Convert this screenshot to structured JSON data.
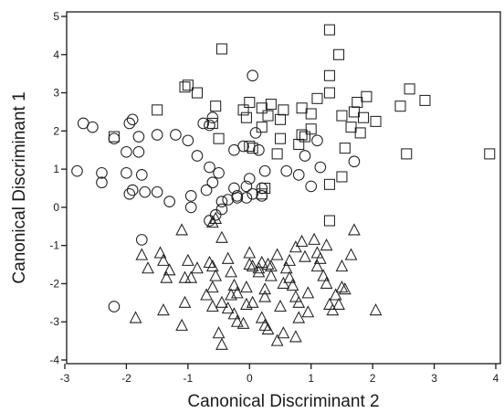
{
  "chart_data": {
    "type": "scatter",
    "title": "",
    "xlabel": "Canonical Discriminant 2",
    "ylabel": "Canonical Discriminant 1",
    "xlim": [
      -3,
      4
    ],
    "ylim": [
      -4,
      5
    ],
    "x_ticks": [
      "-3",
      "-2",
      "-1",
      "0",
      "1",
      "2",
      "3",
      "4"
    ],
    "y_ticks": [
      "5",
      "4",
      "3",
      "2",
      "1",
      "0",
      "-1",
      "-2",
      "-3",
      "-4"
    ],
    "x_tick_values": [
      -3,
      -2,
      -1,
      0,
      1,
      2,
      3,
      4
    ],
    "y_tick_values": [
      5,
      4,
      3,
      2,
      1,
      0,
      -1,
      -2,
      -3,
      -4
    ],
    "grid": false,
    "legend": "none",
    "stroke_color": "#222222",
    "series": [
      {
        "marker": "square",
        "points": [
          [
            1.3,
            4.65
          ],
          [
            1.45,
            4.0
          ],
          [
            -0.45,
            4.15
          ],
          [
            -1.0,
            3.2
          ],
          [
            -0.85,
            3.0
          ],
          [
            -1.05,
            3.15
          ],
          [
            0.0,
            2.75
          ],
          [
            0.35,
            2.7
          ],
          [
            0.2,
            2.6
          ],
          [
            -0.1,
            2.55
          ],
          [
            -0.05,
            2.35
          ],
          [
            0.3,
            2.4
          ],
          [
            0.5,
            2.3
          ],
          [
            0.2,
            2.1
          ],
          [
            0.55,
            2.55
          ],
          [
            -0.55,
            2.65
          ],
          [
            -1.5,
            2.55
          ],
          [
            -2.2,
            1.85
          ],
          [
            -0.6,
            2.2
          ],
          [
            -0.5,
            1.8
          ],
          [
            0.05,
            1.55
          ],
          [
            0.0,
            1.6
          ],
          [
            0.45,
            1.4
          ],
          [
            0.5,
            1.8
          ],
          [
            0.8,
            1.65
          ],
          [
            0.85,
            2.6
          ],
          [
            0.9,
            1.85
          ],
          [
            1.0,
            2.05
          ],
          [
            1.1,
            2.85
          ],
          [
            1.0,
            2.45
          ],
          [
            1.3,
            3.45
          ],
          [
            1.3,
            3.0
          ],
          [
            1.5,
            2.4
          ],
          [
            1.75,
            2.75
          ],
          [
            1.7,
            2.5
          ],
          [
            1.65,
            2.1
          ],
          [
            1.9,
            2.9
          ],
          [
            1.85,
            2.35
          ],
          [
            2.05,
            2.25
          ],
          [
            1.55,
            1.55
          ],
          [
            1.5,
            0.8
          ],
          [
            1.3,
            0.6
          ],
          [
            1.8,
            1.95
          ],
          [
            0.85,
            1.9
          ],
          [
            0.2,
            0.35
          ],
          [
            0.25,
            0.5
          ],
          [
            2.45,
            2.65
          ],
          [
            2.6,
            3.1
          ],
          [
            2.85,
            2.8
          ],
          [
            2.55,
            1.4
          ],
          [
            3.9,
            1.4
          ],
          [
            1.3,
            -0.35
          ]
        ]
      },
      {
        "marker": "circle",
        "points": [
          [
            0.05,
            3.45
          ],
          [
            -2.8,
            0.95
          ],
          [
            -2.7,
            2.2
          ],
          [
            -2.55,
            2.1
          ],
          [
            -2.4,
            0.9
          ],
          [
            -2.4,
            0.65
          ],
          [
            -2.2,
            1.8
          ],
          [
            -2.0,
            1.45
          ],
          [
            -2.0,
            0.9
          ],
          [
            -1.95,
            2.2
          ],
          [
            -1.9,
            2.3
          ],
          [
            -1.8,
            1.85
          ],
          [
            -1.8,
            1.45
          ],
          [
            -1.75,
            0.85
          ],
          [
            -1.7,
            0.4
          ],
          [
            -1.95,
            0.35
          ],
          [
            -1.9,
            0.45
          ],
          [
            -1.5,
            1.9
          ],
          [
            -1.5,
            0.4
          ],
          [
            -1.2,
            1.9
          ],
          [
            -1.0,
            1.75
          ],
          [
            -0.95,
            0.3
          ],
          [
            -0.85,
            1.35
          ],
          [
            -0.75,
            2.2
          ],
          [
            -0.65,
            2.15
          ],
          [
            -0.6,
            2.35
          ],
          [
            -0.65,
            1.05
          ],
          [
            -0.6,
            0.65
          ],
          [
            -0.7,
            0.45
          ],
          [
            -0.5,
            0.9
          ],
          [
            -0.45,
            0.15
          ],
          [
            -0.35,
            0.2
          ],
          [
            -0.25,
            0.5
          ],
          [
            -0.2,
            0.3
          ],
          [
            -0.25,
            1.5
          ],
          [
            -0.2,
            0.25
          ],
          [
            -0.1,
            1.6
          ],
          [
            -0.05,
            0.55
          ],
          [
            -0.05,
            0.25
          ],
          [
            0.0,
            0.75
          ],
          [
            0.05,
            0.35
          ],
          [
            0.1,
            1.95
          ],
          [
            0.15,
            1.5
          ],
          [
            0.2,
            0.5
          ],
          [
            0.2,
            0.3
          ],
          [
            0.25,
            0.95
          ],
          [
            -0.45,
            -0.05
          ],
          [
            -0.55,
            -0.2
          ],
          [
            -0.65,
            -0.35
          ],
          [
            -0.95,
            0.0
          ],
          [
            -1.75,
            -0.85
          ],
          [
            -2.2,
            -2.6
          ],
          [
            0.9,
            1.35
          ],
          [
            1.0,
            0.55
          ],
          [
            1.1,
            1.75
          ],
          [
            1.15,
            1.05
          ],
          [
            0.8,
            0.85
          ],
          [
            0.6,
            0.95
          ],
          [
            1.7,
            1.2
          ],
          [
            -1.3,
            0.15
          ]
        ]
      },
      {
        "marker": "triangle",
        "points": [
          [
            -0.55,
            -0.3
          ],
          [
            -0.6,
            -0.4
          ],
          [
            -1.1,
            -0.6
          ],
          [
            -0.45,
            -0.8
          ],
          [
            -1.75,
            -1.25
          ],
          [
            -1.45,
            -1.2
          ],
          [
            -1.4,
            -1.4
          ],
          [
            -1.35,
            -1.85
          ],
          [
            -1.3,
            -1.65
          ],
          [
            -1.0,
            -1.4
          ],
          [
            -1.05,
            -1.85
          ],
          [
            -0.65,
            -1.45
          ],
          [
            -0.55,
            -1.8
          ],
          [
            -0.3,
            -1.7
          ],
          [
            -0.25,
            -2.05
          ],
          [
            -0.3,
            -2.3
          ],
          [
            -0.2,
            -2.25
          ],
          [
            -0.35,
            -2.65
          ],
          [
            -0.25,
            -2.8
          ],
          [
            -0.05,
            -2.1
          ],
          [
            -0.05,
            -2.55
          ],
          [
            0.0,
            -1.2
          ],
          [
            0.0,
            -1.5
          ],
          [
            0.05,
            -1.55
          ],
          [
            0.15,
            -1.7
          ],
          [
            0.2,
            -1.45
          ],
          [
            0.25,
            -2.15
          ],
          [
            0.25,
            -2.35
          ],
          [
            0.3,
            -1.5
          ],
          [
            0.35,
            -1.8
          ],
          [
            0.45,
            -1.25
          ],
          [
            0.55,
            -2.0
          ],
          [
            0.5,
            -2.6
          ],
          [
            0.65,
            -1.4
          ],
          [
            0.65,
            -1.85
          ],
          [
            0.7,
            -2.05
          ],
          [
            0.75,
            -2.35
          ],
          [
            0.75,
            -1.05
          ],
          [
            0.8,
            -2.5
          ],
          [
            0.8,
            -2.9
          ],
          [
            0.85,
            -0.9
          ],
          [
            0.9,
            -1.3
          ],
          [
            0.95,
            -2.25
          ],
          [
            0.95,
            -2.75
          ],
          [
            1.05,
            -0.85
          ],
          [
            1.1,
            -1.2
          ],
          [
            1.1,
            -1.55
          ],
          [
            1.15,
            -1.35
          ],
          [
            1.2,
            -1.8
          ],
          [
            1.25,
            -1.0
          ],
          [
            0.55,
            -3.3
          ],
          [
            0.45,
            -3.5
          ],
          [
            0.3,
            -3.2
          ],
          [
            0.2,
            -2.9
          ],
          [
            0.25,
            -3.1
          ],
          [
            -0.2,
            -3.0
          ],
          [
            -0.5,
            -3.3
          ],
          [
            -0.45,
            -3.6
          ],
          [
            -0.6,
            -2.6
          ],
          [
            -1.1,
            -3.1
          ],
          [
            -1.05,
            -2.5
          ],
          [
            -1.4,
            -2.7
          ],
          [
            -1.85,
            -2.9
          ],
          [
            -1.65,
            -1.6
          ],
          [
            -0.85,
            -1.6
          ],
          [
            -0.7,
            -2.3
          ],
          [
            -0.6,
            -2.1
          ],
          [
            -0.45,
            -2.5
          ],
          [
            -0.1,
            -3.05
          ],
          [
            0.05,
            -2.5
          ],
          [
            0.75,
            -3.4
          ],
          [
            1.25,
            -2.0
          ],
          [
            1.4,
            -2.3
          ],
          [
            1.5,
            -2.1
          ],
          [
            1.55,
            -2.15
          ],
          [
            1.5,
            -1.55
          ],
          [
            1.65,
            -1.25
          ],
          [
            1.7,
            -0.6
          ],
          [
            1.45,
            -2.55
          ],
          [
            1.3,
            -2.55
          ],
          [
            1.35,
            -2.7
          ],
          [
            2.05,
            -2.7
          ],
          [
            -0.95,
            -1.85
          ],
          [
            -0.6,
            -1.55
          ],
          [
            -0.35,
            -1.35
          ],
          [
            0.15,
            -1.6
          ],
          [
            0.35,
            -1.55
          ],
          [
            0.6,
            -1.6
          ]
        ]
      }
    ]
  }
}
